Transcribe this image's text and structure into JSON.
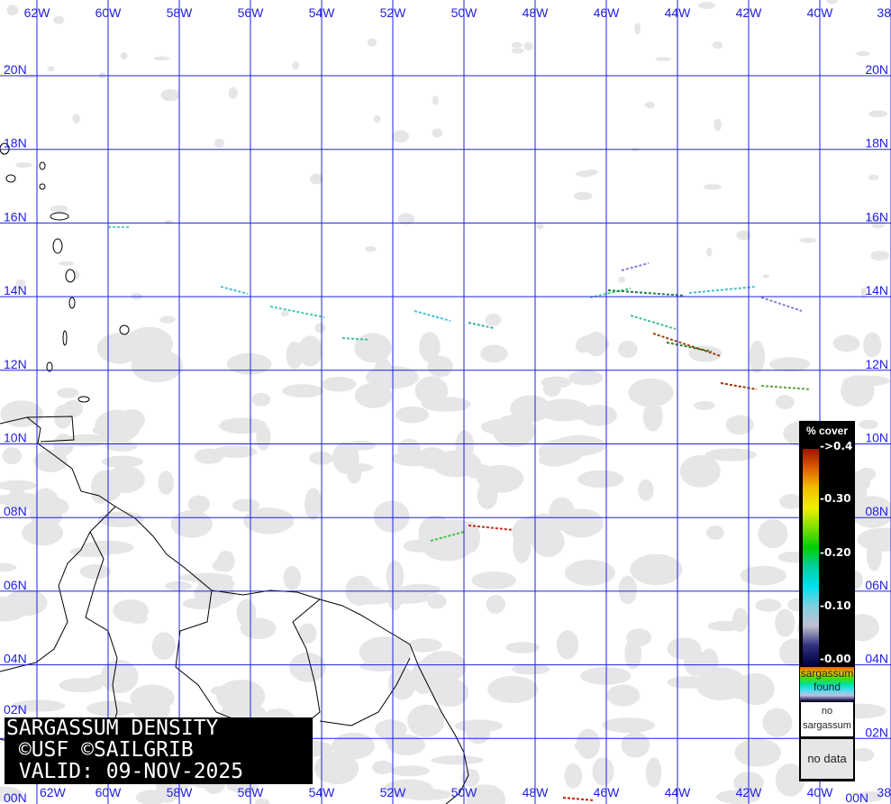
{
  "title": {
    "line1": "SARGASSUM DENSITY",
    "line2": " ©USF ©SAILGRIB",
    "line3": " VALID: 09-NOV-2025"
  },
  "grid": {
    "lon_labels": [
      "62W",
      "60W",
      "58W",
      "56W",
      "54W",
      "52W",
      "50W",
      "48W",
      "46W",
      "44W",
      "42W",
      "40W",
      "38"
    ],
    "lat_labels": [
      "20N",
      "18N",
      "16N",
      "14N",
      "12N",
      "10N",
      "08N",
      "06N",
      "04N",
      "02N",
      "00N"
    ],
    "color": "#2020e0"
  },
  "legend": {
    "header": "% cover",
    "ticks": [
      "->0.4",
      "-0.30",
      "-0.20",
      "-0.10",
      "-0.00"
    ],
    "found": "sargassum found",
    "none": "no sargassum",
    "nodata": "no data"
  },
  "colors": {
    "land": "#ffffff",
    "cloud": "#e4e4e6",
    "coast": "#000000",
    "low": "#40d0e0",
    "high": "#a02000"
  }
}
